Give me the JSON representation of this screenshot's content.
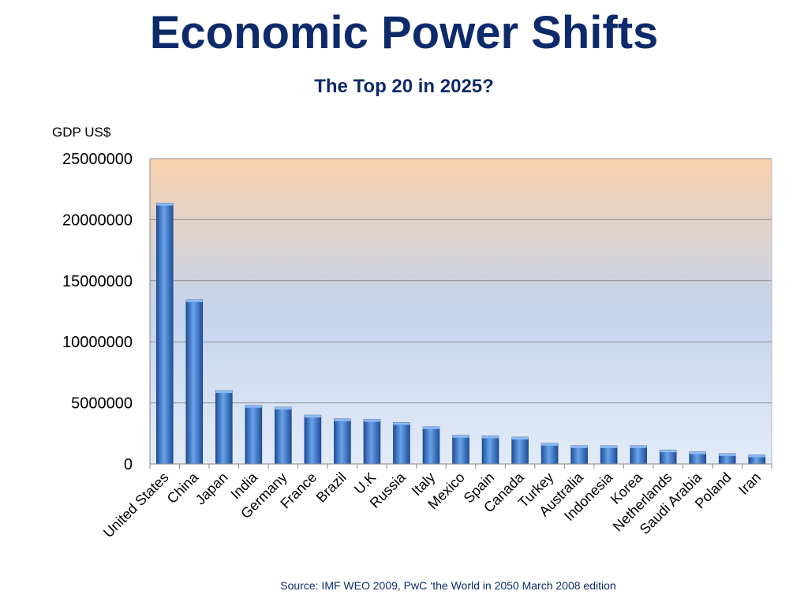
{
  "slide": {
    "title": "Economic Power Shifts",
    "subtitle": "The Top 20 in 2025?",
    "source": "Source: IMF WEO 2009, PwC ‘the World in 2050 March 2008 edition"
  },
  "colors": {
    "title": "#0d2a6b",
    "bar_light": "#6aa3ea",
    "bar_dark": "#1f4f9a",
    "plot_top": "#f9d2ad",
    "plot_mid": "#c4d4ee",
    "plot_bottom": "#e3ebf7",
    "grid": "#8a8a8a"
  },
  "chart_data": {
    "type": "bar",
    "title": "",
    "ylabel": "GDP US$",
    "xlabel": "",
    "ylim": [
      0,
      25000000
    ],
    "yticks": [
      "0",
      "5000000",
      "10000000",
      "15000000",
      "20000000",
      "25000000"
    ],
    "grid": true,
    "categories": [
      "United States",
      "China",
      "Japan",
      "India",
      "Germany",
      "France",
      "Brazil",
      "U.K",
      "Russia",
      "Italy",
      "Mexico",
      "Spain",
      "Canada",
      "Turkey",
      "Australia",
      "Indonesia",
      "Korea",
      "Netherlands",
      "Saudi Arabia",
      "Poland",
      "Iran"
    ],
    "values": [
      21350000,
      13450000,
      6000000,
      4800000,
      4650000,
      4000000,
      3700000,
      3650000,
      3400000,
      3050000,
      2350000,
      2300000,
      2200000,
      1700000,
      1500000,
      1500000,
      1500000,
      1150000,
      1000000,
      850000,
      750000
    ]
  }
}
